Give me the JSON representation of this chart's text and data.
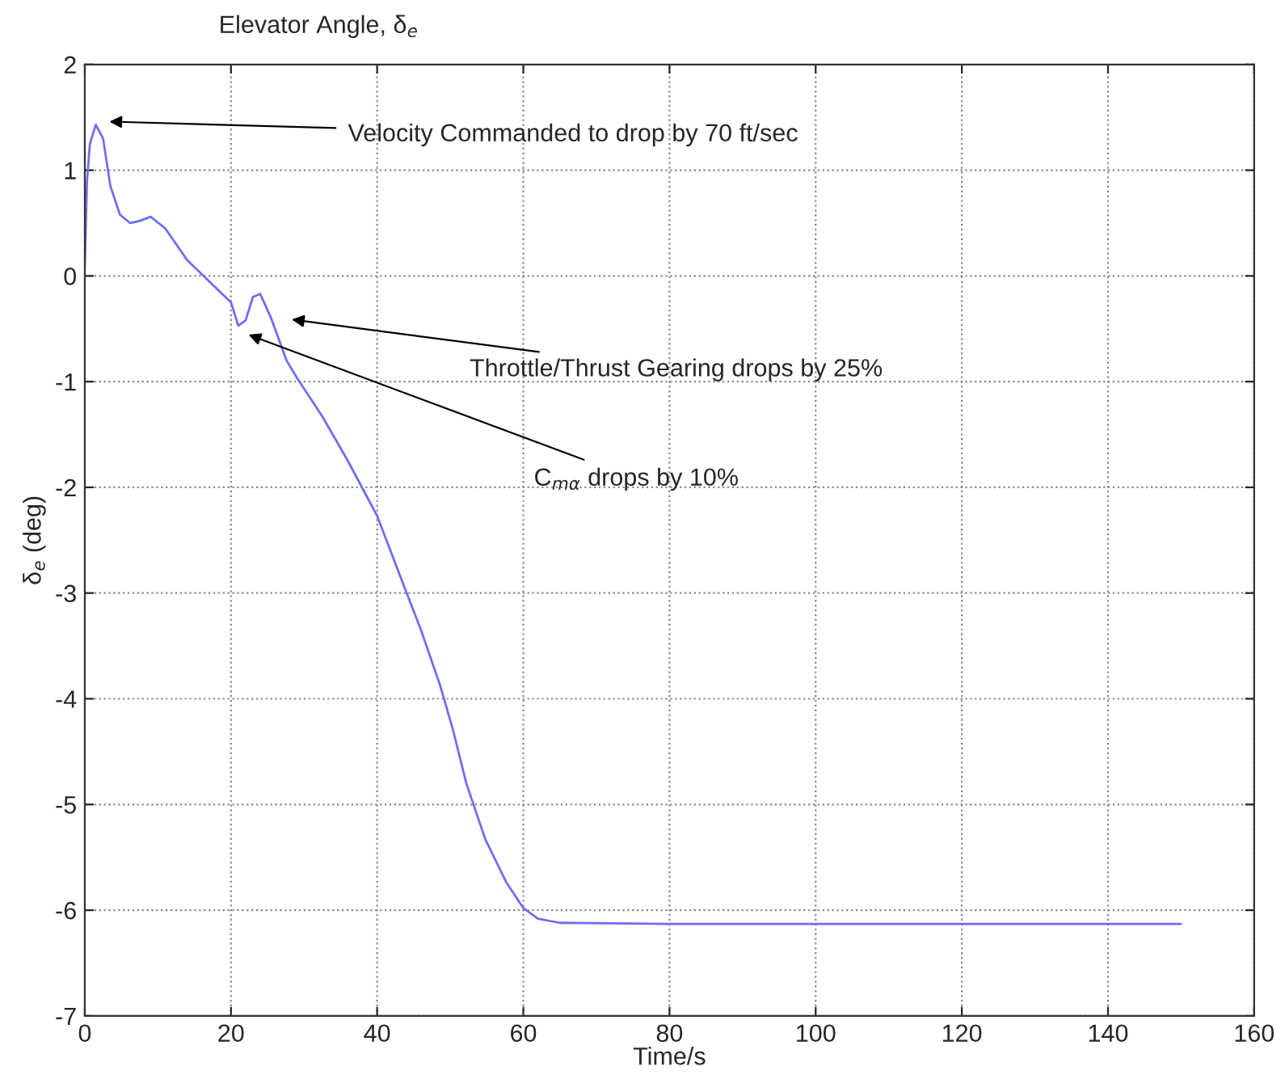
{
  "chart_data": {
    "type": "line",
    "title": "Elevator Angle, δ$_{e}$",
    "xlabel": "Time/s",
    "ylabel": "δ$_{e}$ (deg)",
    "x": [
      0,
      0.3,
      0.7,
      1.5,
      2.5,
      3.5,
      4.8,
      6.2,
      7.5,
      9,
      11,
      14,
      17,
      20,
      21,
      22,
      23,
      24,
      25.5,
      27.6,
      29,
      32.5,
      36,
      40,
      43.7,
      46,
      48.6,
      50.4,
      52.2,
      54.8,
      57.7,
      60,
      62,
      65,
      80,
      100,
      120,
      150
    ],
    "series": [
      {
        "color": "#6e6ef0",
        "values": [
          0.1,
          0.9,
          1.25,
          1.43,
          1.3,
          0.85,
          0.58,
          0.5,
          0.52,
          0.56,
          0.45,
          0.15,
          -0.05,
          -0.25,
          -0.47,
          -0.42,
          -0.2,
          -0.17,
          -0.4,
          -0.8,
          -0.96,
          -1.33,
          -1.75,
          -2.27,
          -2.94,
          -3.35,
          -3.87,
          -4.3,
          -4.8,
          -5.33,
          -5.74,
          -5.98,
          -6.08,
          -6.12,
          -6.13,
          -6.13,
          -6.13,
          -6.13
        ]
      }
    ],
    "xlim": [
      0,
      160
    ],
    "xticks": [
      0,
      20,
      40,
      60,
      80,
      100,
      120,
      140,
      160
    ],
    "ylim": [
      -7,
      2
    ],
    "yticks": [
      -7,
      -6,
      -5,
      -4,
      -3,
      -2,
      -1,
      0,
      1,
      2
    ],
    "grid": true,
    "marker": "none",
    "line_style": "solid",
    "legend": false,
    "annotations": [
      "Velocity Commanded to drop by 70 ft/sec",
      "Throttle/Thrust Gearing drops by 25%",
      "C$_{mα}$ drops by 10%"
    ]
  }
}
